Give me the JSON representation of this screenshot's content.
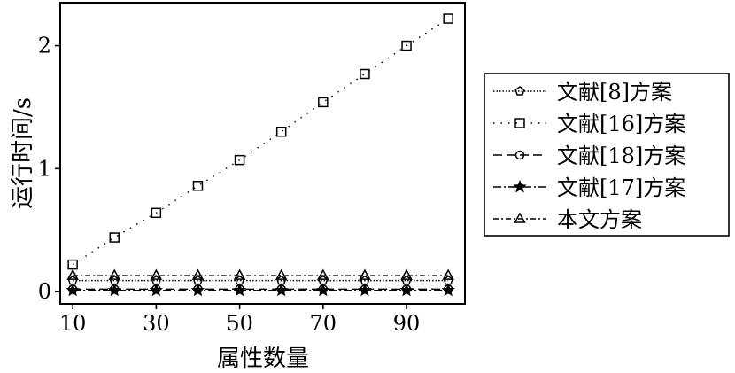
{
  "chart_data": {
    "type": "line",
    "xlabel": "属性数量",
    "ylabel": "运行时间/s",
    "xlim": [
      7,
      104
    ],
    "ylim": [
      -0.1,
      2.35
    ],
    "xticks": [
      10,
      30,
      50,
      70,
      90
    ],
    "yticks": [
      0,
      1,
      2
    ],
    "xtick_labels": [
      "10",
      "30",
      "50",
      "70",
      "90"
    ],
    "ytick_labels": [
      "0",
      "1",
      "2"
    ],
    "grid": false,
    "legend_position": "right",
    "x": [
      10,
      20,
      30,
      40,
      50,
      60,
      70,
      80,
      90,
      100
    ],
    "series": [
      {
        "name": "文献[8]方案",
        "marker": "pentagon",
        "dash": "dotted-dense",
        "values": [
          0.09,
          0.09,
          0.09,
          0.09,
          0.09,
          0.09,
          0.09,
          0.09,
          0.09,
          0.09
        ]
      },
      {
        "name": "文献[16]方案",
        "marker": "square",
        "dash": "dotted-sparse",
        "values": [
          0.22,
          0.44,
          0.64,
          0.86,
          1.07,
          1.3,
          1.54,
          1.77,
          2.0,
          2.22
        ]
      },
      {
        "name": "文献[18]方案",
        "marker": "circle",
        "dash": "dashed",
        "values": [
          0.02,
          0.02,
          0.02,
          0.02,
          0.02,
          0.02,
          0.02,
          0.02,
          0.02,
          0.02
        ]
      },
      {
        "name": "文献[17]方案",
        "marker": "star",
        "dash": "dash-dot",
        "values": [
          0.01,
          0.01,
          0.01,
          0.01,
          0.01,
          0.01,
          0.01,
          0.01,
          0.01,
          0.01
        ]
      },
      {
        "name": "本文方案",
        "marker": "triangle",
        "dash": "dash-dot-short",
        "values": [
          0.13,
          0.13,
          0.13,
          0.13,
          0.13,
          0.13,
          0.13,
          0.13,
          0.13,
          0.13
        ]
      }
    ]
  }
}
